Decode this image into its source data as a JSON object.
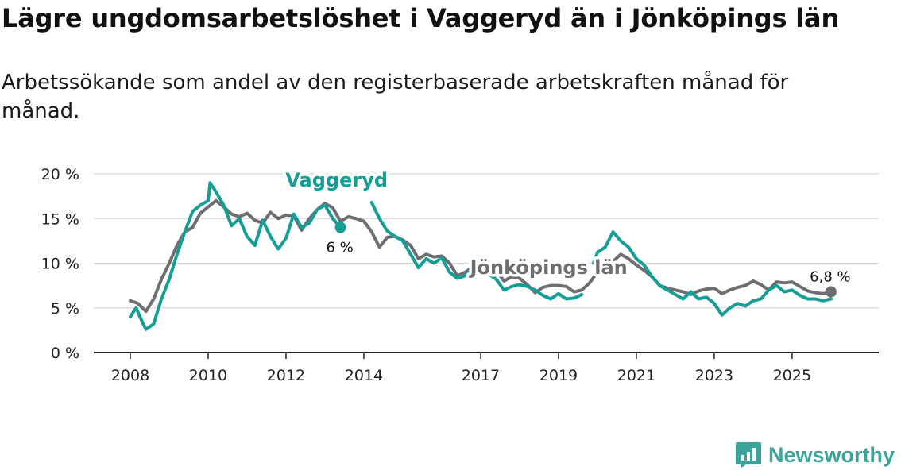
{
  "title": "Lägre ungdomsarbetslöshet i Vaggeryd än i Jönköpings län",
  "subtitle": "Arbetssökande som andel av den registerbaserade arbetskraften månad för månad.",
  "brand": {
    "name": "Newsworthy",
    "color": "#3aa39a"
  },
  "chart_data": {
    "type": "line",
    "ylim": [
      0,
      20
    ],
    "y_ticks": [
      0,
      5,
      10,
      15,
      20
    ],
    "y_tick_labels": [
      "0 %",
      "5 %",
      "10 %",
      "15 %",
      "20 %"
    ],
    "x_ticks": [
      2008,
      2010,
      2012,
      2014,
      2017,
      2019,
      2021,
      2023,
      2025
    ],
    "x_tick_labels": [
      "2008",
      "2010",
      "2012",
      "2014",
      "2017",
      "2019",
      "2021",
      "2023",
      "2025"
    ],
    "grid": true,
    "series": [
      {
        "name": "Jönköpings län",
        "color": "#6e6d71",
        "end_label": "6,8 %",
        "points": [
          [
            2008.0,
            5.8
          ],
          [
            2008.2,
            5.5
          ],
          [
            2008.4,
            4.6
          ],
          [
            2008.6,
            6.0
          ],
          [
            2008.8,
            8.2
          ],
          [
            2009.0,
            10.0
          ],
          [
            2009.2,
            12.0
          ],
          [
            2009.4,
            13.5
          ],
          [
            2009.6,
            14.0
          ],
          [
            2009.8,
            15.6
          ],
          [
            2010.0,
            16.3
          ],
          [
            2010.2,
            17.0
          ],
          [
            2010.4,
            16.3
          ],
          [
            2010.6,
            15.5
          ],
          [
            2010.8,
            15.2
          ],
          [
            2011.0,
            15.6
          ],
          [
            2011.2,
            14.8
          ],
          [
            2011.4,
            14.5
          ],
          [
            2011.6,
            15.7
          ],
          [
            2011.8,
            15.0
          ],
          [
            2012.0,
            15.4
          ],
          [
            2012.2,
            15.3
          ],
          [
            2012.4,
            13.7
          ],
          [
            2012.6,
            15.0
          ],
          [
            2012.8,
            16.0
          ],
          [
            2013.0,
            16.7
          ],
          [
            2013.2,
            16.2
          ],
          [
            2013.4,
            14.7
          ],
          [
            2013.6,
            15.2
          ],
          [
            2013.8,
            15.0
          ],
          [
            2014.0,
            14.7
          ],
          [
            2014.2,
            13.5
          ],
          [
            2014.4,
            11.8
          ],
          [
            2014.6,
            12.9
          ],
          [
            2014.8,
            13.0
          ],
          [
            2015.0,
            12.6
          ],
          [
            2015.2,
            12.0
          ],
          [
            2015.4,
            10.5
          ],
          [
            2015.6,
            11.0
          ],
          [
            2015.8,
            10.7
          ],
          [
            2016.0,
            10.8
          ],
          [
            2016.2,
            10.0
          ],
          [
            2016.4,
            8.6
          ],
          [
            2016.6,
            9.0
          ],
          [
            2016.8,
            9.6
          ],
          [
            2017.0,
            9.3
          ],
          [
            2017.2,
            9.8
          ],
          [
            2017.4,
            9.2
          ],
          [
            2017.6,
            8.0
          ],
          [
            2017.8,
            8.5
          ],
          [
            2018.0,
            8.3
          ],
          [
            2018.2,
            7.6
          ],
          [
            2018.4,
            6.7
          ],
          [
            2018.6,
            7.3
          ],
          [
            2018.8,
            7.5
          ],
          [
            2019.0,
            7.5
          ],
          [
            2019.2,
            7.4
          ],
          [
            2019.4,
            6.8
          ],
          [
            2019.6,
            7.0
          ],
          [
            2019.8,
            7.8
          ],
          [
            2020.0,
            9.0
          ],
          [
            2020.2,
            10.0
          ],
          [
            2020.4,
            10.2
          ],
          [
            2020.6,
            11.0
          ],
          [
            2020.8,
            10.5
          ],
          [
            2021.0,
            9.8
          ],
          [
            2021.2,
            9.2
          ],
          [
            2021.4,
            8.5
          ],
          [
            2021.6,
            7.5
          ],
          [
            2021.8,
            7.2
          ],
          [
            2022.0,
            7.0
          ],
          [
            2022.2,
            6.8
          ],
          [
            2022.4,
            6.5
          ],
          [
            2022.6,
            6.9
          ],
          [
            2022.8,
            7.1
          ],
          [
            2023.0,
            7.2
          ],
          [
            2023.2,
            6.6
          ],
          [
            2023.4,
            7.0
          ],
          [
            2023.6,
            7.3
          ],
          [
            2023.8,
            7.5
          ],
          [
            2024.0,
            8.0
          ],
          [
            2024.2,
            7.6
          ],
          [
            2024.4,
            7.0
          ],
          [
            2024.6,
            7.9
          ],
          [
            2024.8,
            7.8
          ],
          [
            2025.0,
            7.9
          ],
          [
            2025.2,
            7.4
          ],
          [
            2025.4,
            6.9
          ],
          [
            2025.6,
            6.7
          ],
          [
            2025.8,
            6.6
          ],
          [
            2026.0,
            6.8
          ]
        ]
      },
      {
        "name": "Vaggeryd",
        "color": "#159e96",
        "end_label": "6 %",
        "points": [
          [
            2008.0,
            4.0
          ],
          [
            2008.15,
            5.0
          ],
          [
            2008.3,
            3.5
          ],
          [
            2008.4,
            2.6
          ],
          [
            2008.6,
            3.2
          ],
          [
            2008.8,
            6.0
          ],
          [
            2009.0,
            8.2
          ],
          [
            2009.2,
            11.0
          ],
          [
            2009.4,
            13.5
          ],
          [
            2009.6,
            15.8
          ],
          [
            2009.8,
            16.5
          ],
          [
            2010.0,
            17.0
          ],
          [
            2010.05,
            19.0
          ],
          [
            2010.2,
            18.0
          ],
          [
            2010.4,
            16.5
          ],
          [
            2010.6,
            14.2
          ],
          [
            2010.8,
            15.0
          ],
          [
            2011.0,
            13.0
          ],
          [
            2011.2,
            12.0
          ],
          [
            2011.4,
            14.8
          ],
          [
            2011.6,
            13.0
          ],
          [
            2011.8,
            11.6
          ],
          [
            2012.0,
            12.8
          ],
          [
            2012.2,
            15.5
          ],
          [
            2012.4,
            14.0
          ],
          [
            2012.6,
            14.5
          ],
          [
            2012.8,
            16.0
          ],
          [
            2013.0,
            16.5
          ],
          [
            2013.2,
            15.0
          ],
          [
            2013.4,
            14.0
          ]
        ]
      },
      {
        "name": "Vaggeryd",
        "color": "#159e96",
        "points": [
          [
            2014.2,
            16.8
          ],
          [
            2014.4,
            15.0
          ],
          [
            2014.6,
            13.6
          ],
          [
            2014.8,
            13.0
          ],
          [
            2015.0,
            12.5
          ],
          [
            2015.2,
            11.0
          ],
          [
            2015.4,
            9.5
          ],
          [
            2015.6,
            10.5
          ],
          [
            2015.8,
            10.0
          ],
          [
            2016.0,
            10.6
          ],
          [
            2016.2,
            9.0
          ],
          [
            2016.4,
            8.3
          ],
          [
            2016.6,
            8.6
          ],
          [
            2016.8,
            9.5
          ],
          [
            2017.0,
            9.3
          ],
          [
            2017.2,
            8.8
          ],
          [
            2017.4,
            8.2
          ],
          [
            2017.6,
            7.0
          ],
          [
            2017.8,
            7.4
          ],
          [
            2018.0,
            7.6
          ],
          [
            2018.2,
            7.4
          ],
          [
            2018.4,
            7.0
          ],
          [
            2018.6,
            6.4
          ],
          [
            2018.8,
            6.0
          ],
          [
            2019.0,
            6.6
          ],
          [
            2019.2,
            6.0
          ],
          [
            2019.4,
            6.1
          ],
          [
            2019.6,
            6.5
          ]
        ]
      },
      {
        "name": "Vaggeryd",
        "color": "#159e96",
        "points": [
          [
            2019.9,
            10.0
          ],
          [
            2020.0,
            11.2
          ],
          [
            2020.2,
            11.8
          ],
          [
            2020.4,
            13.5
          ],
          [
            2020.6,
            12.5
          ],
          [
            2020.8,
            11.8
          ],
          [
            2021.0,
            10.5
          ],
          [
            2021.2,
            9.8
          ],
          [
            2021.4,
            8.5
          ],
          [
            2021.6,
            7.5
          ],
          [
            2021.8,
            7.0
          ],
          [
            2022.0,
            6.5
          ],
          [
            2022.2,
            6.0
          ],
          [
            2022.4,
            6.8
          ],
          [
            2022.6,
            6.0
          ],
          [
            2022.8,
            6.2
          ],
          [
            2023.0,
            5.5
          ],
          [
            2023.2,
            4.2
          ],
          [
            2023.4,
            5.0
          ],
          [
            2023.6,
            5.5
          ],
          [
            2023.8,
            5.2
          ],
          [
            2024.0,
            5.8
          ],
          [
            2024.2,
            6.0
          ],
          [
            2024.4,
            7.0
          ],
          [
            2024.6,
            7.5
          ],
          [
            2024.8,
            6.8
          ],
          [
            2025.0,
            7.0
          ],
          [
            2025.2,
            6.4
          ],
          [
            2025.4,
            6.0
          ],
          [
            2025.6,
            6.0
          ],
          [
            2025.8,
            5.8
          ],
          [
            2026.0,
            6.0
          ]
        ]
      }
    ],
    "series_labels": [
      {
        "text": "Vaggeryd",
        "color": "#159e96",
        "x": 2013.3,
        "y": 18.6
      },
      {
        "text": "Jönköpings län",
        "color": "#6e6d71",
        "x": 2018.75,
        "y": 8.8
      }
    ]
  }
}
